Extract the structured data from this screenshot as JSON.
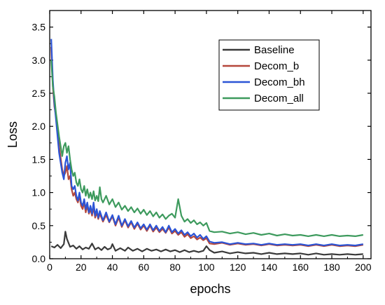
{
  "chart_data": {
    "type": "line",
    "title": "",
    "xlabel": "epochs",
    "ylabel": "Loss",
    "xlim": [
      0,
      205
    ],
    "ylim": [
      0,
      3.75
    ],
    "xticks": [
      0,
      20,
      40,
      60,
      80,
      100,
      120,
      140,
      160,
      180,
      200
    ],
    "yticks": [
      0.0,
      0.5,
      1.0,
      1.5,
      2.0,
      2.5,
      3.0,
      3.5
    ],
    "grid": false,
    "legend_position": "top-right",
    "series": [
      {
        "name": "Baseline",
        "color": "#3a3a3a",
        "points": [
          [
            1,
            0.19
          ],
          [
            3,
            0.17
          ],
          [
            5,
            0.21
          ],
          [
            7,
            0.16
          ],
          [
            9,
            0.22
          ],
          [
            10,
            0.41
          ],
          [
            11,
            0.3
          ],
          [
            13,
            0.18
          ],
          [
            15,
            0.2
          ],
          [
            17,
            0.15
          ],
          [
            19,
            0.19
          ],
          [
            21,
            0.14
          ],
          [
            23,
            0.17
          ],
          [
            25,
            0.15
          ],
          [
            27,
            0.23
          ],
          [
            29,
            0.14
          ],
          [
            31,
            0.17
          ],
          [
            33,
            0.13
          ],
          [
            35,
            0.18
          ],
          [
            37,
            0.14
          ],
          [
            39,
            0.16
          ],
          [
            40,
            0.22
          ],
          [
            42,
            0.12
          ],
          [
            45,
            0.16
          ],
          [
            48,
            0.12
          ],
          [
            50,
            0.17
          ],
          [
            53,
            0.12
          ],
          [
            56,
            0.15
          ],
          [
            59,
            0.11
          ],
          [
            62,
            0.15
          ],
          [
            65,
            0.12
          ],
          [
            68,
            0.14
          ],
          [
            71,
            0.11
          ],
          [
            74,
            0.14
          ],
          [
            77,
            0.11
          ],
          [
            80,
            0.13
          ],
          [
            83,
            0.1
          ],
          [
            86,
            0.13
          ],
          [
            89,
            0.1
          ],
          [
            92,
            0.12
          ],
          [
            95,
            0.1
          ],
          [
            98,
            0.12
          ],
          [
            100,
            0.19
          ],
          [
            102,
            0.13
          ],
          [
            105,
            0.09
          ],
          [
            110,
            0.11
          ],
          [
            115,
            0.08
          ],
          [
            120,
            0.1
          ],
          [
            125,
            0.08
          ],
          [
            130,
            0.09
          ],
          [
            135,
            0.07
          ],
          [
            140,
            0.09
          ],
          [
            145,
            0.07
          ],
          [
            150,
            0.08
          ],
          [
            155,
            0.07
          ],
          [
            160,
            0.08
          ],
          [
            165,
            0.06
          ],
          [
            170,
            0.08
          ],
          [
            175,
            0.06
          ],
          [
            180,
            0.07
          ],
          [
            185,
            0.06
          ],
          [
            190,
            0.07
          ],
          [
            195,
            0.06
          ],
          [
            200,
            0.07
          ]
        ]
      },
      {
        "name": "Decom_b",
        "color": "#b5473a",
        "points": [
          [
            1,
            3.2
          ],
          [
            2,
            2.6
          ],
          [
            3,
            2.3
          ],
          [
            4,
            2.15
          ],
          [
            6,
            1.7
          ],
          [
            8,
            1.35
          ],
          [
            9,
            1.25
          ],
          [
            10,
            1.3
          ],
          [
            11,
            1.4
          ],
          [
            12,
            1.2
          ],
          [
            13,
            1.25
          ],
          [
            14,
            1.05
          ],
          [
            15,
            0.95
          ],
          [
            16,
            1.0
          ],
          [
            17,
            0.9
          ],
          [
            18,
            0.85
          ],
          [
            19,
            0.95
          ],
          [
            20,
            0.8
          ],
          [
            21,
            0.75
          ],
          [
            22,
            0.85
          ],
          [
            23,
            0.7
          ],
          [
            24,
            0.8
          ],
          [
            25,
            0.68
          ],
          [
            26,
            0.75
          ],
          [
            27,
            0.65
          ],
          [
            28,
            0.78
          ],
          [
            29,
            0.62
          ],
          [
            30,
            0.7
          ],
          [
            31,
            0.6
          ],
          [
            32,
            0.68
          ],
          [
            34,
            0.56
          ],
          [
            36,
            0.66
          ],
          [
            38,
            0.55
          ],
          [
            40,
            0.64
          ],
          [
            42,
            0.5
          ],
          [
            44,
            0.62
          ],
          [
            46,
            0.48
          ],
          [
            48,
            0.58
          ],
          [
            50,
            0.47
          ],
          [
            52,
            0.55
          ],
          [
            54,
            0.45
          ],
          [
            56,
            0.53
          ],
          [
            58,
            0.44
          ],
          [
            60,
            0.5
          ],
          [
            62,
            0.42
          ],
          [
            64,
            0.5
          ],
          [
            66,
            0.41
          ],
          [
            68,
            0.47
          ],
          [
            70,
            0.4
          ],
          [
            72,
            0.45
          ],
          [
            74,
            0.39
          ],
          [
            76,
            0.47
          ],
          [
            78,
            0.38
          ],
          [
            80,
            0.42
          ],
          [
            82,
            0.36
          ],
          [
            84,
            0.4
          ],
          [
            86,
            0.33
          ],
          [
            88,
            0.37
          ],
          [
            90,
            0.31
          ],
          [
            92,
            0.34
          ],
          [
            94,
            0.29
          ],
          [
            96,
            0.32
          ],
          [
            98,
            0.28
          ],
          [
            100,
            0.31
          ],
          [
            102,
            0.23
          ],
          [
            105,
            0.22
          ],
          [
            110,
            0.24
          ],
          [
            115,
            0.21
          ],
          [
            120,
            0.23
          ],
          [
            125,
            0.21
          ],
          [
            130,
            0.22
          ],
          [
            135,
            0.2
          ],
          [
            140,
            0.22
          ],
          [
            145,
            0.2
          ],
          [
            150,
            0.21
          ],
          [
            155,
            0.2
          ],
          [
            160,
            0.21
          ],
          [
            165,
            0.19
          ],
          [
            170,
            0.21
          ],
          [
            175,
            0.19
          ],
          [
            180,
            0.21
          ],
          [
            185,
            0.19
          ],
          [
            190,
            0.2
          ],
          [
            195,
            0.19
          ],
          [
            200,
            0.21
          ]
        ]
      },
      {
        "name": "Decom_bh",
        "color": "#2b54d6",
        "points": [
          [
            1,
            3.32
          ],
          [
            2,
            2.7
          ],
          [
            3,
            2.35
          ],
          [
            4,
            2.1
          ],
          [
            6,
            1.6
          ],
          [
            8,
            1.3
          ],
          [
            9,
            1.2
          ],
          [
            10,
            1.45
          ],
          [
            11,
            1.55
          ],
          [
            12,
            1.35
          ],
          [
            13,
            1.45
          ],
          [
            14,
            1.1
          ],
          [
            15,
            1.05
          ],
          [
            16,
            1.1
          ],
          [
            17,
            0.95
          ],
          [
            18,
            0.88
          ],
          [
            19,
            1.0
          ],
          [
            20,
            0.85
          ],
          [
            21,
            0.8
          ],
          [
            22,
            0.9
          ],
          [
            23,
            0.75
          ],
          [
            24,
            0.85
          ],
          [
            25,
            0.7
          ],
          [
            26,
            0.8
          ],
          [
            27,
            0.68
          ],
          [
            28,
            0.85
          ],
          [
            29,
            0.65
          ],
          [
            30,
            0.75
          ],
          [
            31,
            0.62
          ],
          [
            32,
            0.72
          ],
          [
            34,
            0.58
          ],
          [
            36,
            0.7
          ],
          [
            38,
            0.56
          ],
          [
            40,
            0.66
          ],
          [
            42,
            0.52
          ],
          [
            44,
            0.65
          ],
          [
            46,
            0.5
          ],
          [
            48,
            0.6
          ],
          [
            50,
            0.49
          ],
          [
            52,
            0.57
          ],
          [
            54,
            0.47
          ],
          [
            56,
            0.55
          ],
          [
            58,
            0.46
          ],
          [
            60,
            0.52
          ],
          [
            62,
            0.44
          ],
          [
            64,
            0.52
          ],
          [
            66,
            0.43
          ],
          [
            68,
            0.5
          ],
          [
            70,
            0.42
          ],
          [
            72,
            0.48
          ],
          [
            74,
            0.4
          ],
          [
            76,
            0.5
          ],
          [
            78,
            0.4
          ],
          [
            80,
            0.45
          ],
          [
            82,
            0.38
          ],
          [
            84,
            0.43
          ],
          [
            86,
            0.36
          ],
          [
            88,
            0.4
          ],
          [
            90,
            0.34
          ],
          [
            92,
            0.38
          ],
          [
            94,
            0.32
          ],
          [
            96,
            0.36
          ],
          [
            98,
            0.3
          ],
          [
            100,
            0.34
          ],
          [
            102,
            0.26
          ],
          [
            105,
            0.24
          ],
          [
            110,
            0.25
          ],
          [
            115,
            0.22
          ],
          [
            120,
            0.24
          ],
          [
            125,
            0.22
          ],
          [
            130,
            0.23
          ],
          [
            135,
            0.21
          ],
          [
            140,
            0.23
          ],
          [
            145,
            0.21
          ],
          [
            150,
            0.22
          ],
          [
            155,
            0.21
          ],
          [
            160,
            0.22
          ],
          [
            165,
            0.2
          ],
          [
            170,
            0.22
          ],
          [
            175,
            0.2
          ],
          [
            180,
            0.22
          ],
          [
            185,
            0.2
          ],
          [
            190,
            0.21
          ],
          [
            195,
            0.2
          ],
          [
            200,
            0.22
          ]
        ]
      },
      {
        "name": "Decom_all",
        "color": "#3d9a5d",
        "points": [
          [
            1,
            3.0
          ],
          [
            2,
            2.6
          ],
          [
            3,
            2.45
          ],
          [
            4,
            2.2
          ],
          [
            6,
            1.85
          ],
          [
            8,
            1.55
          ],
          [
            9,
            1.7
          ],
          [
            10,
            1.75
          ],
          [
            11,
            1.6
          ],
          [
            12,
            1.7
          ],
          [
            13,
            1.5
          ],
          [
            14,
            1.35
          ],
          [
            15,
            1.25
          ],
          [
            16,
            1.3
          ],
          [
            17,
            1.15
          ],
          [
            18,
            1.1
          ],
          [
            19,
            1.2
          ],
          [
            20,
            1.05
          ],
          [
            21,
            1.0
          ],
          [
            22,
            1.1
          ],
          [
            23,
            0.95
          ],
          [
            24,
            1.05
          ],
          [
            25,
            0.92
          ],
          [
            26,
            1.0
          ],
          [
            27,
            0.9
          ],
          [
            28,
            1.02
          ],
          [
            29,
            0.88
          ],
          [
            30,
            0.95
          ],
          [
            31,
            0.87
          ],
          [
            32,
            1.08
          ],
          [
            33,
            0.9
          ],
          [
            34,
            0.85
          ],
          [
            36,
            0.95
          ],
          [
            38,
            0.82
          ],
          [
            40,
            0.9
          ],
          [
            42,
            0.78
          ],
          [
            44,
            0.85
          ],
          [
            46,
            0.74
          ],
          [
            48,
            0.8
          ],
          [
            50,
            0.72
          ],
          [
            52,
            0.78
          ],
          [
            54,
            0.7
          ],
          [
            56,
            0.76
          ],
          [
            58,
            0.68
          ],
          [
            60,
            0.74
          ],
          [
            62,
            0.66
          ],
          [
            64,
            0.72
          ],
          [
            66,
            0.64
          ],
          [
            68,
            0.7
          ],
          [
            70,
            0.62
          ],
          [
            72,
            0.67
          ],
          [
            74,
            0.6
          ],
          [
            76,
            0.65
          ],
          [
            78,
            0.68
          ],
          [
            80,
            0.62
          ],
          [
            82,
            0.9
          ],
          [
            84,
            0.65
          ],
          [
            86,
            0.56
          ],
          [
            88,
            0.6
          ],
          [
            90,
            0.54
          ],
          [
            92,
            0.58
          ],
          [
            94,
            0.52
          ],
          [
            96,
            0.55
          ],
          [
            98,
            0.5
          ],
          [
            100,
            0.54
          ],
          [
            102,
            0.42
          ],
          [
            105,
            0.4
          ],
          [
            110,
            0.41
          ],
          [
            115,
            0.38
          ],
          [
            120,
            0.4
          ],
          [
            125,
            0.37
          ],
          [
            130,
            0.39
          ],
          [
            135,
            0.36
          ],
          [
            140,
            0.38
          ],
          [
            145,
            0.35
          ],
          [
            150,
            0.37
          ],
          [
            155,
            0.35
          ],
          [
            160,
            0.36
          ],
          [
            165,
            0.34
          ],
          [
            170,
            0.36
          ],
          [
            175,
            0.34
          ],
          [
            180,
            0.36
          ],
          [
            185,
            0.34
          ],
          [
            190,
            0.35
          ],
          [
            195,
            0.34
          ],
          [
            200,
            0.36
          ]
        ]
      }
    ]
  }
}
